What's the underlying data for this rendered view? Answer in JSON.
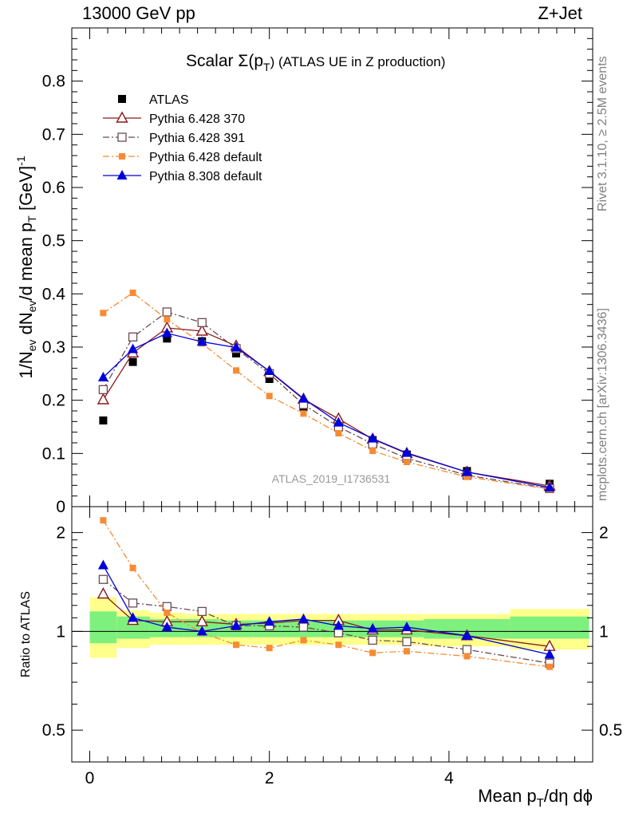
{
  "header": {
    "left": "13000 GeV pp",
    "right": "Z+Jet"
  },
  "title_main": "Scalar Σ(p",
  "title_sub": "T",
  "title_rest": ") (ATLAS UE in Z production)",
  "side_text_top": "Rivet 3.1.10, ≥ 2.5M events",
  "side_text_bottom": "mcplots.cern.ch [arXiv:1306.3436]",
  "watermark": "ATLAS_2019_I1736531",
  "ylabel_main": "1/N_ev dN_ev/d mean p_T [GeV]^-1",
  "ylabel_ratio": "Ratio to ATLAS",
  "xlabel": "Mean p_T/dη dϕ",
  "colors": {
    "atlas": "#000000",
    "p370": "#8b1a1a",
    "p391": "#6b4a52",
    "p6def": "#f78b34",
    "p8def": "#0000dd",
    "band_inner": "#7ef07e",
    "band_outer": "#ffff8c"
  },
  "chart_data": [
    {
      "type": "line",
      "title": "Scalar Σ(pT) (ATLAS UE in Z production)",
      "ylabel": "1/Nev dNev/d mean pT [GeV]^-1",
      "xlim": [
        -0.2,
        5.6
      ],
      "ylim": [
        0,
        0.9
      ],
      "yticks": [
        0,
        0.1,
        0.2,
        0.3,
        0.4,
        0.5,
        0.6,
        0.7,
        0.8
      ],
      "ytick_labels": [
        "0",
        "0.1",
        "0.2",
        "0.3",
        "0.4",
        "0.5",
        "0.6",
        "0.7",
        "0.8"
      ],
      "legend_position": "top-left",
      "x": [
        0.15,
        0.48,
        0.86,
        1.25,
        1.63,
        2.0,
        2.38,
        2.77,
        3.15,
        3.53,
        4.2,
        5.12
      ],
      "series": [
        {
          "name": "ATLAS",
          "style": "points-square-filled",
          "color_key": "atlas",
          "values": [
            0.162,
            0.272,
            0.316,
            0.311,
            0.288,
            0.24,
            0.187,
            0.152,
            0.125,
            0.098,
            0.067,
            0.043
          ]
        },
        {
          "name": "Pythia 6.428 370",
          "style": "solid-triangle-open",
          "color_key": "p370",
          "values": [
            0.201,
            0.289,
            0.336,
            0.33,
            0.302,
            0.254,
            0.202,
            0.165,
            0.127,
            0.1,
            0.065,
            0.039
          ]
        },
        {
          "name": "Pythia 6.428 391",
          "style": "dashdot-square-open",
          "color_key": "p391",
          "values": [
            0.22,
            0.319,
            0.366,
            0.346,
            0.297,
            0.25,
            0.192,
            0.15,
            0.118,
            0.091,
            0.059,
            0.034
          ]
        },
        {
          "name": "Pythia 6.428 default",
          "style": "dashdot-square-filled-small",
          "color_key": "p6def",
          "values": [
            0.364,
            0.402,
            0.352,
            0.307,
            0.256,
            0.208,
            0.175,
            0.138,
            0.105,
            0.084,
            0.056,
            0.033
          ]
        },
        {
          "name": "Pythia 8.308 default",
          "style": "solid-triangle-filled",
          "color_key": "p8def",
          "values": [
            0.243,
            0.296,
            0.326,
            0.31,
            0.299,
            0.255,
            0.203,
            0.158,
            0.128,
            0.101,
            0.065,
            0.036
          ]
        }
      ]
    },
    {
      "type": "line",
      "ylabel": "Ratio to ATLAS",
      "xlabel": "Mean pT/dη dϕ",
      "xlim": [
        -0.2,
        5.6
      ],
      "ylim": [
        0.4,
        2.4
      ],
      "yscale": "log",
      "xticks": [
        0,
        2,
        4
      ],
      "xtick_labels": [
        "0",
        "2",
        "4"
      ],
      "yticks": [
        0.5,
        1,
        2
      ],
      "ytick_labels": [
        "0.5",
        "1",
        "2"
      ],
      "x": [
        0.15,
        0.48,
        0.86,
        1.25,
        1.63,
        2.0,
        2.38,
        2.77,
        3.15,
        3.53,
        4.2,
        5.12
      ],
      "bands": {
        "edges": [
          0.0,
          0.3,
          0.67,
          1.05,
          1.44,
          1.82,
          2.19,
          2.57,
          2.96,
          3.34,
          3.72,
          4.68,
          5.56
        ],
        "inner_lo": [
          0.92,
          0.95,
          0.96,
          0.96,
          0.96,
          0.96,
          0.96,
          0.96,
          0.96,
          0.96,
          0.95,
          0.95
        ],
        "inner_hi": [
          1.15,
          1.11,
          1.09,
          1.09,
          1.08,
          1.08,
          1.08,
          1.08,
          1.08,
          1.08,
          1.09,
          1.11
        ],
        "outer_lo": [
          0.83,
          0.89,
          0.91,
          0.91,
          0.91,
          0.91,
          0.91,
          0.91,
          0.91,
          0.91,
          0.9,
          0.88
        ],
        "outer_hi": [
          1.27,
          1.16,
          1.14,
          1.13,
          1.13,
          1.13,
          1.13,
          1.13,
          1.13,
          1.13,
          1.13,
          1.17
        ]
      },
      "series": [
        {
          "name": "Pythia 6.428 370",
          "color_key": "p370",
          "values": [
            1.3,
            1.08,
            1.07,
            1.07,
            1.05,
            1.06,
            1.08,
            1.08,
            1.01,
            1.01,
            0.97,
            0.9
          ]
        },
        {
          "name": "Pythia 6.428 391",
          "color_key": "p391",
          "values": [
            1.44,
            1.22,
            1.19,
            1.15,
            1.04,
            1.04,
            1.03,
            0.99,
            0.94,
            0.93,
            0.88,
            0.8
          ]
        },
        {
          "name": "Pythia 6.428 default",
          "color_key": "p6def",
          "values": [
            2.18,
            1.56,
            1.14,
            0.99,
            0.91,
            0.89,
            0.94,
            0.91,
            0.86,
            0.87,
            0.84,
            0.78
          ]
        },
        {
          "name": "Pythia 8.308 default",
          "color_key": "p8def",
          "values": [
            1.59,
            1.1,
            1.03,
            1.0,
            1.04,
            1.07,
            1.09,
            1.04,
            1.02,
            1.03,
            0.97,
            0.85
          ]
        }
      ]
    }
  ]
}
